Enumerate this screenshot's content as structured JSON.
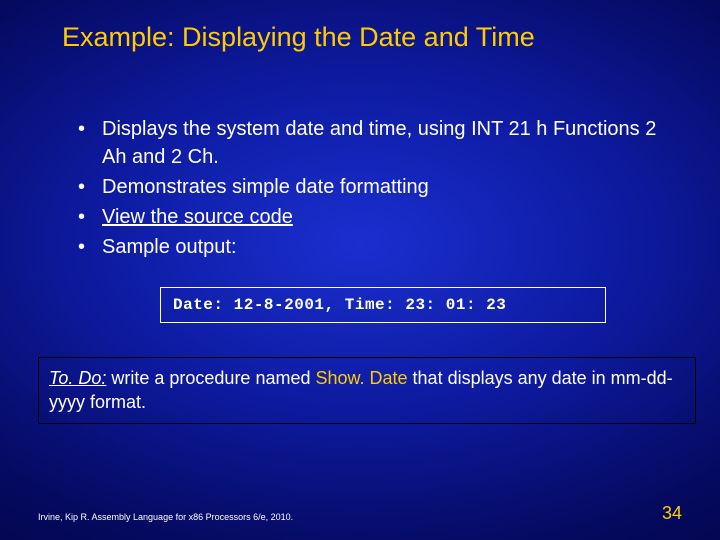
{
  "colors": {
    "title_color": "#ffcc00",
    "text_color": "#ffffff",
    "highlight_color": "#ffcc00",
    "background_center": "#1a2fd0",
    "background_edge": "#000033",
    "border_color": "#ffffff",
    "todo_border_color": "#000000"
  },
  "typography": {
    "title_fontsize": 27,
    "bullet_fontsize": 20,
    "code_fontsize": 16,
    "todo_fontsize": 18,
    "footer_fontsize": 9,
    "pagenum_fontsize": 18,
    "body_font": "Arial",
    "code_font": "Courier New"
  },
  "title": "Example: Displaying the Date and Time",
  "bullets": {
    "b1": "Displays the system date and time, using INT 21 h Functions 2 Ah and 2 Ch.",
    "b2": "Demonstrates simple date formatting",
    "b3": "View the source code",
    "b4": "Sample output:"
  },
  "code": {
    "date_label": "Date: ",
    "date_value": "12-8-2001,",
    "gap": "   ",
    "time_label": "Time: ",
    "time_value": "23: 01: 23"
  },
  "todo": {
    "label": "To. Do:",
    "pre": " write a procedure named ",
    "proc_name": "Show. Date",
    "post": " that displays any date in mm-dd-yyyy format."
  },
  "footer": "Irvine, Kip R. Assembly Language for x86 Processors 6/e, 2010.",
  "page_number": "34"
}
